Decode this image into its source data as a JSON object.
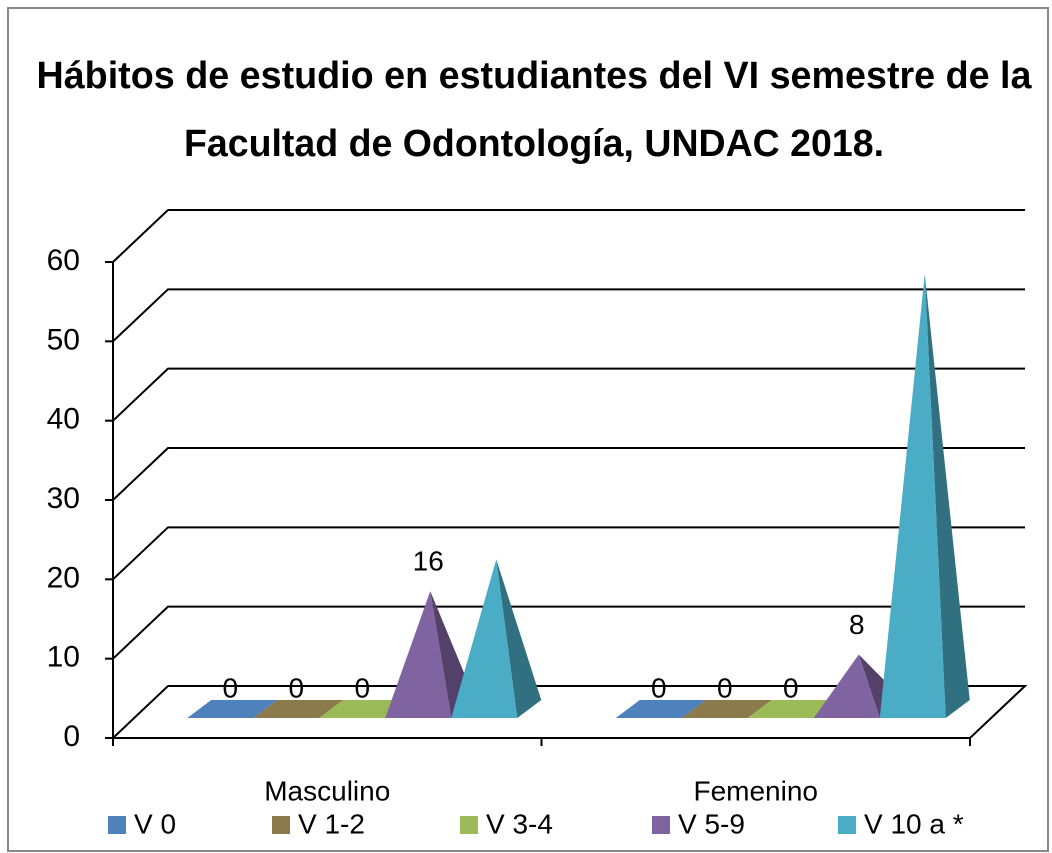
{
  "chart_data": {
    "type": "pyramid3d",
    "title": [
      "Hábitos de estudio en estudiantes del VI semestre de  la",
      "Facultad de Odontología, UNDAC 2018."
    ],
    "categories": [
      "Masculino",
      "Femenino"
    ],
    "series": [
      {
        "name": "V 0",
        "color": "#4f81bd",
        "values": [
          0,
          0
        ]
      },
      {
        "name": "V 1-2",
        "color": "#8a7a4c",
        "values": [
          0,
          0
        ]
      },
      {
        "name": "V 3-4",
        "color": "#9bbb59",
        "values": [
          0,
          0
        ]
      },
      {
        "name": "V 5-9",
        "color": "#8064a2",
        "values": [
          16,
          8
        ]
      },
      {
        "name": "V 10 a *",
        "color": "#4bacc6",
        "values": [
          20,
          56
        ],
        "value_labels": [
          null,
          null
        ]
      }
    ],
    "ylim": [
      0,
      60
    ],
    "yticks": [
      0,
      10,
      20,
      30,
      40,
      50,
      60
    ],
    "grid": true,
    "legend": "bottom"
  }
}
